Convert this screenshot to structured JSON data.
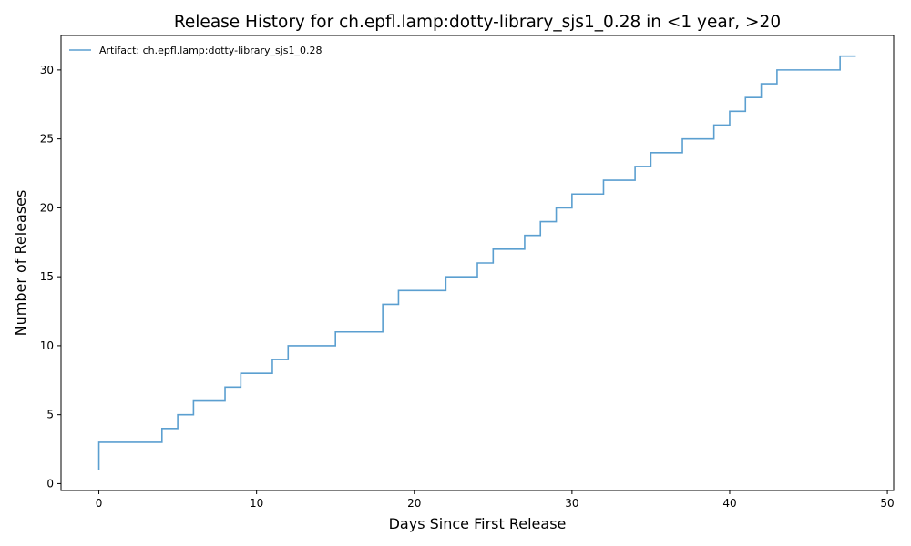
{
  "chart_data": {
    "type": "line",
    "drawstyle": "steps-post",
    "title": "Release History for ch.epfl.lamp:dotty-library_sjs1_0.28 in <1 year, >20",
    "xlabel": "Days Since First Release",
    "ylabel": "Number of Releases",
    "xlim": [
      -2.4,
      50.4
    ],
    "ylim": [
      -0.5,
      32.5
    ],
    "xticks": [
      0,
      10,
      20,
      30,
      40,
      50
    ],
    "yticks": [
      0,
      5,
      10,
      15,
      20,
      25,
      30
    ],
    "grid": false,
    "legend_position": "top-left",
    "series": [
      {
        "name": "Artifact: ch.epfl.lamp:dotty-library_sjs1_0.28",
        "color": "#5b9fd0",
        "x": [
          0,
          0,
          4,
          5,
          6,
          8,
          9,
          11,
          12,
          15,
          18,
          19,
          22,
          24,
          25,
          27,
          28,
          29,
          30,
          32,
          34,
          35,
          37,
          39,
          40,
          41,
          42,
          43,
          47,
          48
        ],
        "y": [
          1,
          3,
          4,
          5,
          6,
          7,
          8,
          9,
          10,
          11,
          13,
          14,
          15,
          16,
          17,
          18,
          19,
          20,
          21,
          22,
          23,
          24,
          25,
          26,
          27,
          28,
          29,
          30,
          31,
          31
        ]
      }
    ]
  }
}
